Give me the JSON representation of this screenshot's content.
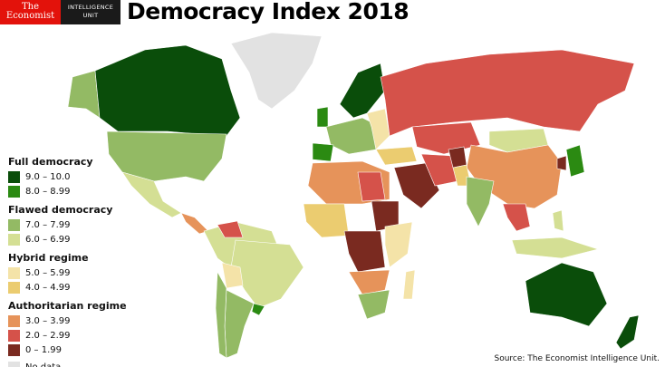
{
  "header": {
    "logo_top": "The",
    "logo_bottom": "Economist",
    "eiu_top": "INTELLIGENCE",
    "eiu_bottom": "UNIT",
    "title": "Democracy Index 2018"
  },
  "legend": {
    "groups": [
      {
        "label": "Full democracy",
        "items": [
          {
            "label": "9.0 – 10.0",
            "color": "#0a4d0a"
          },
          {
            "label": "8.0 – 8.99",
            "color": "#2b8a12"
          }
        ]
      },
      {
        "label": "Flawed democracy",
        "items": [
          {
            "label": "7.0 – 7.99",
            "color": "#93ba64"
          },
          {
            "label": "6.0 – 6.99",
            "color": "#d4df94"
          }
        ]
      },
      {
        "label": "Hybrid regime",
        "items": [
          {
            "label": "5.0 – 5.99",
            "color": "#f4e3a8"
          },
          {
            "label": "4.0 – 4.99",
            "color": "#ebcc70"
          }
        ]
      },
      {
        "label": "Authoritarian regime",
        "items": [
          {
            "label": "3.0 – 3.99",
            "color": "#e6935a"
          },
          {
            "label": "2.0 – 2.99",
            "color": "#d5524a"
          },
          {
            "label": "0 – 1.99",
            "color": "#7a2a20"
          }
        ]
      }
    ],
    "no_data": {
      "label": "No data",
      "color": "#e2e2e2"
    }
  },
  "source": "Source: The Economist Intelligence Unit."
}
